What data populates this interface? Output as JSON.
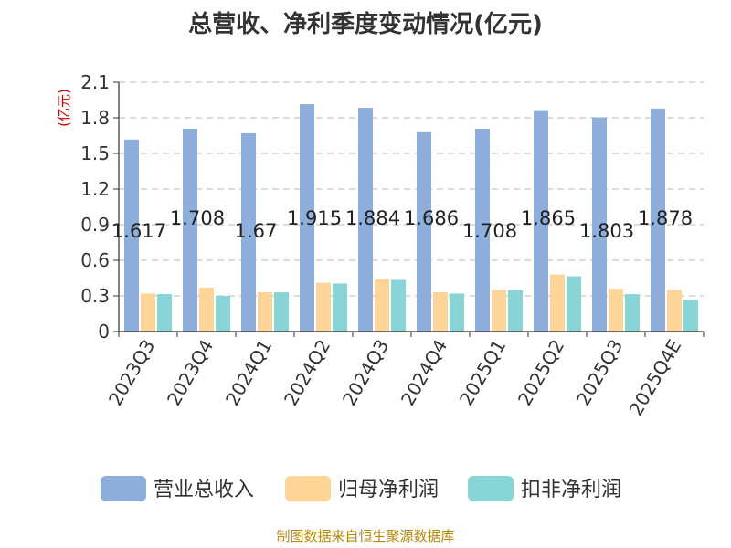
{
  "chart_data": {
    "type": "bar",
    "title": "总营收、净利季度变动情况(亿元)",
    "ylabel": "(亿元)",
    "xlabel": "",
    "ylim": [
      0,
      2.1
    ],
    "yticks": [
      "0",
      "0.3",
      "0.6",
      "0.9",
      "1.2",
      "1.5",
      "1.8",
      "2.1"
    ],
    "categories": [
      "2023Q3",
      "2023Q4",
      "2024Q1",
      "2024Q2",
      "2024Q3",
      "2024Q4",
      "2025Q1",
      "2025Q2",
      "2025Q3",
      "2025Q4E"
    ],
    "series": [
      {
        "name": "营业总收入",
        "color": "#8eaedb",
        "values": [
          1.617,
          1.708,
          1.67,
          1.915,
          1.884,
          1.686,
          1.708,
          1.865,
          1.803,
          1.878
        ],
        "labels": [
          "1.617",
          "1.708",
          "1.67",
          "1.915",
          "1.884",
          "1.686",
          "1.708",
          "1.865",
          "1.803",
          "1.878"
        ]
      },
      {
        "name": "归母净利润",
        "color": "#fdd596",
        "values": [
          0.32,
          0.37,
          0.33,
          0.41,
          0.44,
          0.33,
          0.35,
          0.48,
          0.36,
          0.35
        ]
      },
      {
        "name": "扣非净利润",
        "color": "#87d5d6",
        "values": [
          0.315,
          0.3,
          0.33,
          0.405,
          0.435,
          0.32,
          0.35,
          0.465,
          0.315,
          0.27
        ]
      }
    ],
    "grid": true,
    "legend": "bottom"
  },
  "footer": {
    "source": "制图数据来自恒生聚源数据库"
  }
}
